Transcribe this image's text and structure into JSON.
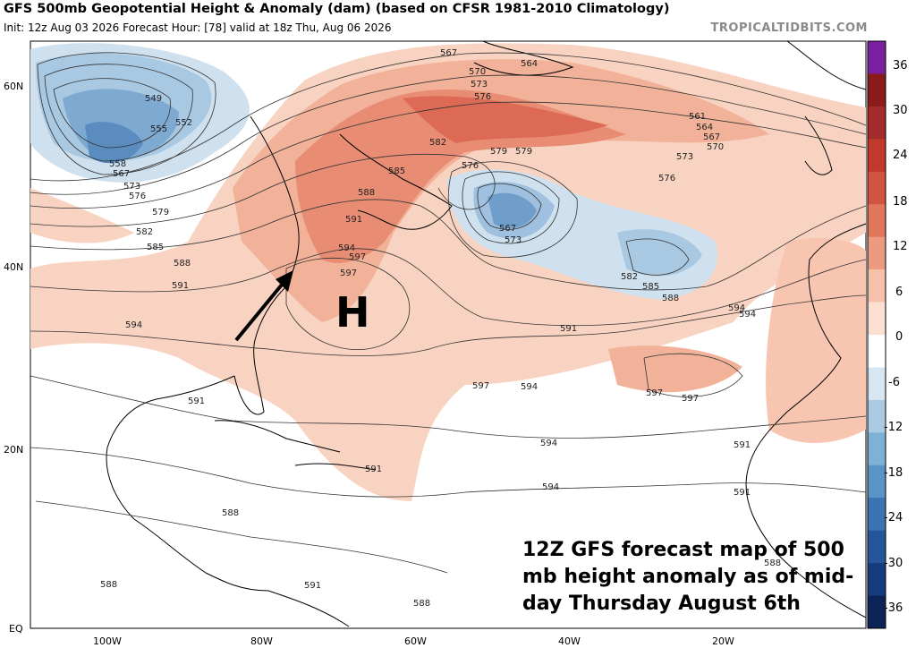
{
  "header": {
    "title": "GFS 500mb Geopotential Height & Anomaly (dam) (based on CFSR 1981-2010 Climatology)",
    "subtitle": "Init: 12z Aug 03 2026   Forecast Hour: [78]   valid at 18z Thu, Aug 06 2026",
    "credit": "TROPICALTIDBITS.COM"
  },
  "map": {
    "lat_labels": [
      "60N",
      "40N",
      "20N",
      "EQ"
    ],
    "lon_labels": [
      "100W",
      "80W",
      "60W",
      "40W",
      "20W"
    ],
    "high_marker": "H",
    "contour_labels": [
      "549",
      "552",
      "555",
      "558",
      "567",
      "573",
      "576",
      "579",
      "582",
      "585",
      "588",
      "591",
      "594",
      "597",
      "564",
      "567",
      "570",
      "573",
      "576",
      "561",
      "564",
      "567",
      "570",
      "573",
      "576",
      "579",
      "582",
      "585",
      "588",
      "591",
      "594",
      "597",
      "567",
      "573",
      "576",
      "579",
      "582",
      "585",
      "588",
      "591",
      "594",
      "597",
      "594",
      "591",
      "588",
      "588",
      "588",
      "588",
      "591",
      "591",
      "594",
      "597",
      "591",
      "594",
      "597",
      "591",
      "594"
    ]
  },
  "colorbar": {
    "labels": [
      "36",
      "30",
      "24",
      "18",
      "12",
      "6",
      "0",
      "-6",
      "-12",
      "-18",
      "-24",
      "-30",
      "-36"
    ],
    "colors": [
      "#7b1fa2",
      "#8b1a1a",
      "#a52a2a",
      "#c0392b",
      "#d35442",
      "#e0765a",
      "#ec9a80",
      "#f6c1a9",
      "#fde0d2",
      "#ffffff",
      "#d7e6f1",
      "#aacbe3",
      "#7fb0d6",
      "#5a93c6",
      "#3b74b2",
      "#26569a",
      "#173c7d",
      "#0c2458"
    ]
  },
  "annotation": {
    "lines": [
      "12Z GFS forecast map of 500",
      "mb height anomaly as of mid-",
      "day Thursday August 6th"
    ]
  }
}
